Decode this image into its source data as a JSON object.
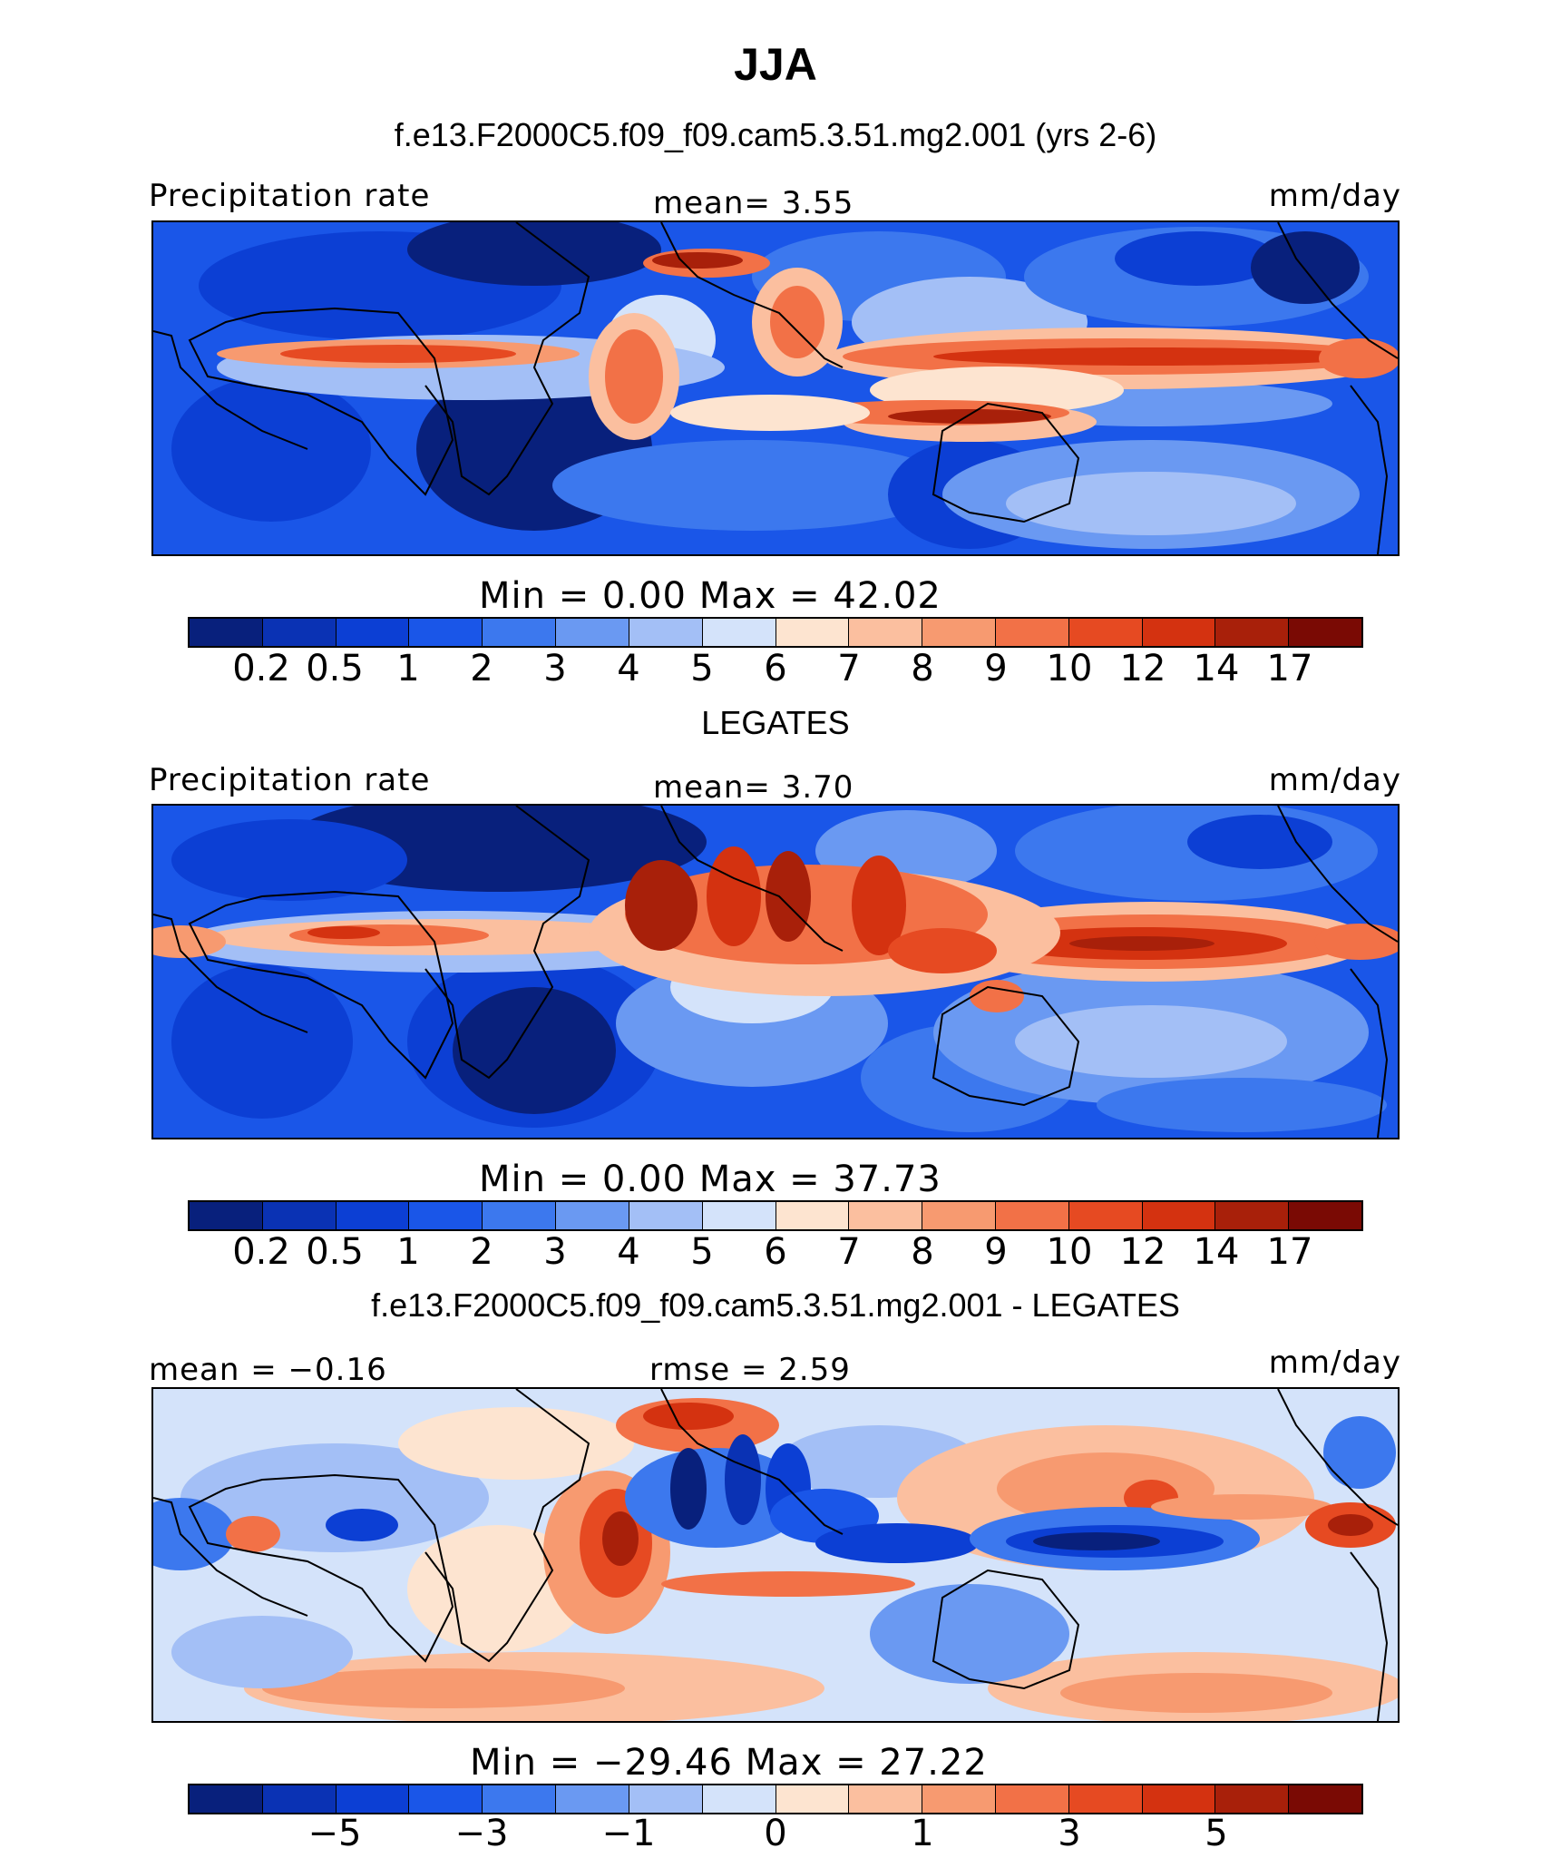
{
  "title": "JJA",
  "panels": [
    {
      "subtitle": "f.e13.F2000C5.f09_f09.cam5.3.51.mg2.001 (yrs 2-6)",
      "left_label": "Precipitation rate",
      "center_label": "mean=   3.55",
      "right_label": "mm/day",
      "minmax": "Min  =    0.00  Max  =   42.02",
      "colorbar": {
        "colors": [
          "#08207c",
          "#0a32b4",
          "#0c3fd4",
          "#1a56e8",
          "#3c78ee",
          "#6a99f2",
          "#a3bff6",
          "#d4e3fa",
          "#fde4d0",
          "#fbbf9f",
          "#f79a70",
          "#f27147",
          "#e64a22",
          "#d43210",
          "#a8200a",
          "#7a0a04"
        ],
        "ticks": [
          "0.2",
          "0.5",
          "1",
          "2",
          "3",
          "4",
          "5",
          "6",
          "7",
          "8",
          "9",
          "10",
          "12",
          "14",
          "17"
        ]
      }
    },
    {
      "subtitle": "LEGATES",
      "left_label": "Precipitation rate",
      "center_label": "mean=   3.70",
      "right_label": "mm/day",
      "minmax": "Min  =    0.00  Max  =   37.73",
      "colorbar": {
        "colors": [
          "#08207c",
          "#0a32b4",
          "#0c3fd4",
          "#1a56e8",
          "#3c78ee",
          "#6a99f2",
          "#a3bff6",
          "#d4e3fa",
          "#fde4d0",
          "#fbbf9f",
          "#f79a70",
          "#f27147",
          "#e64a22",
          "#d43210",
          "#a8200a",
          "#7a0a04"
        ],
        "ticks": [
          "0.2",
          "0.5",
          "1",
          "2",
          "3",
          "4",
          "5",
          "6",
          "7",
          "8",
          "9",
          "10",
          "12",
          "14",
          "17"
        ]
      }
    },
    {
      "subtitle": "f.e13.F2000C5.f09_f09.cam5.3.51.mg2.001 - LEGATES",
      "left_label": "mean  =  −0.16",
      "center_label": "rmse  =   2.59",
      "right_label": "mm/day",
      "minmax": "Min  = −29.46  Max  =   27.22",
      "colorbar": {
        "colors": [
          "#08207c",
          "#0a32b4",
          "#0c3fd4",
          "#1a56e8",
          "#3c78ee",
          "#6a99f2",
          "#a3bff6",
          "#d4e3fa",
          "#fde4d0",
          "#fbbf9f",
          "#f79a70",
          "#f27147",
          "#e64a22",
          "#d43210",
          "#a8200a",
          "#7a0a04"
        ],
        "ticks": [
          "−5",
          "−3",
          "−1",
          "0",
          "1",
          "3",
          "5"
        ]
      }
    }
  ]
}
